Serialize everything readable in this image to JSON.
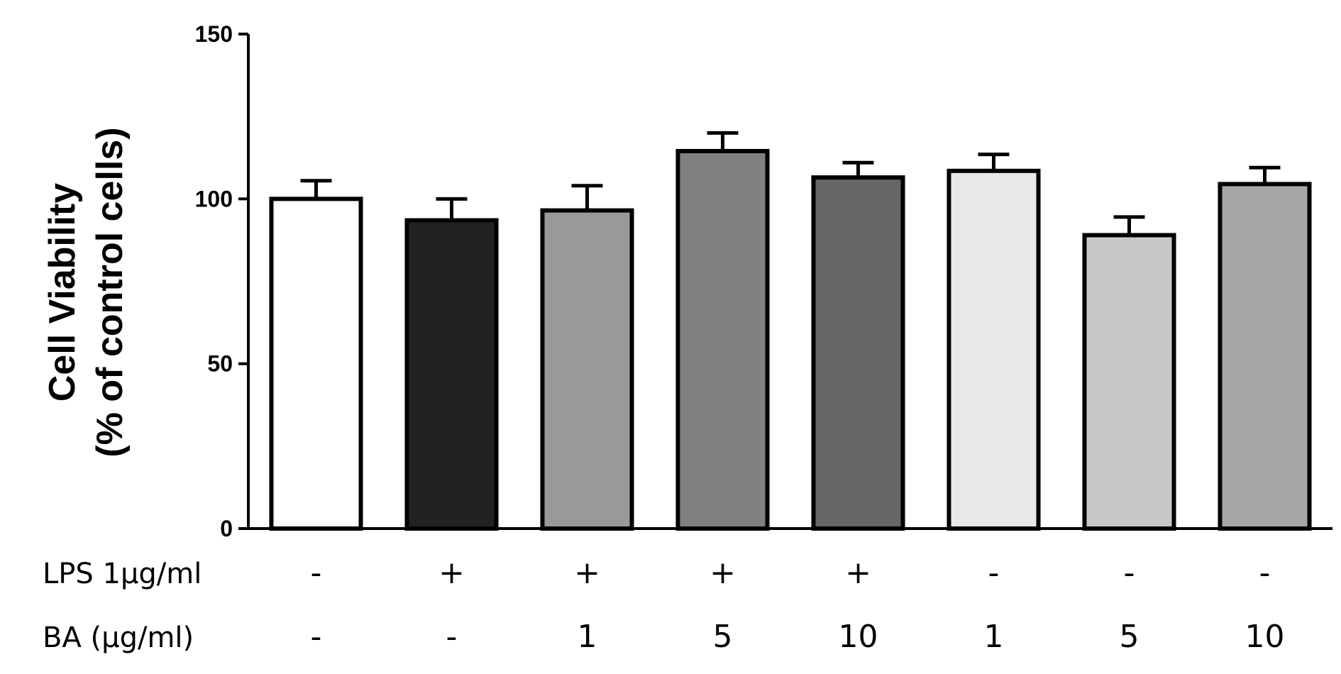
{
  "chart_data": {
    "type": "bar",
    "title": "",
    "ylabel_lines": [
      "Cell Viability",
      "(% of control cells)"
    ],
    "ylim": [
      0,
      150
    ],
    "yticks": [
      0,
      50,
      100,
      150
    ],
    "grid": false,
    "categories": [
      {
        "lps": "-",
        "ba": "-"
      },
      {
        "lps": "+",
        "ba": "-"
      },
      {
        "lps": "+",
        "ba": "1"
      },
      {
        "lps": "+",
        "ba": "5"
      },
      {
        "lps": "+",
        "ba": "10"
      },
      {
        "lps": "-",
        "ba": "1"
      },
      {
        "lps": "-",
        "ba": "5"
      },
      {
        "lps": "-",
        "ba": "10"
      }
    ],
    "values": [
      100,
      93.5,
      96.5,
      114.5,
      106.5,
      108.5,
      89,
      104.5
    ],
    "errors": [
      5.5,
      6.5,
      7.5,
      5.5,
      4.5,
      5,
      5.5,
      5
    ],
    "colors": [
      "#ffffff",
      "#222222",
      "#999999",
      "#808080",
      "#666666",
      "#e8e8e8",
      "#c8c8c8",
      "#a6a6a6"
    ],
    "row_labels": {
      "lps": "LPS 1μg/ml",
      "ba": "BA (μg/ml)"
    }
  }
}
